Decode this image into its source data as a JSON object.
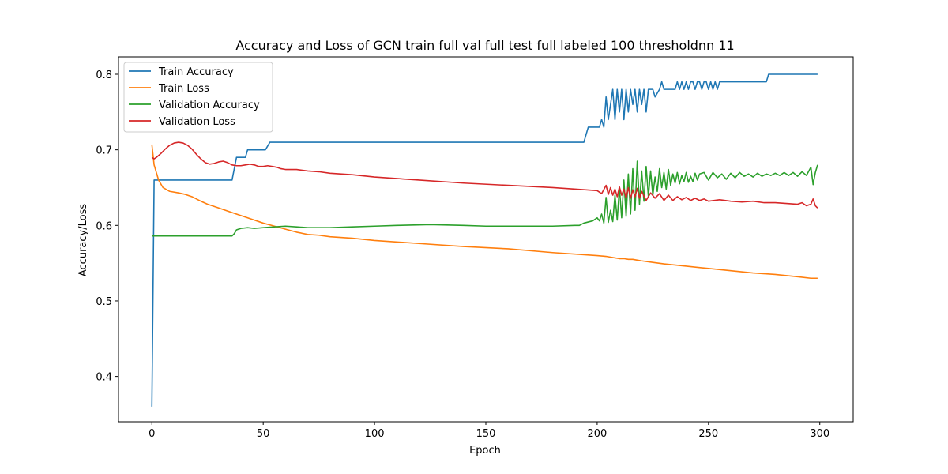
{
  "chart_data": {
    "type": "line",
    "title": "Accuracy and Loss of GCN train full val full test full labeled 100 thresholdnn 11",
    "xlabel": "Epoch",
    "ylabel": "Accuracy/Loss",
    "xlim": [
      -15,
      315
    ],
    "ylim": [
      0.34,
      0.823
    ],
    "xticks": [
      0,
      50,
      100,
      150,
      200,
      250,
      300
    ],
    "yticks": [
      0.4,
      0.5,
      0.6,
      0.7,
      0.8
    ],
    "legend_position": "upper-left",
    "grid": false,
    "series": [
      {
        "name": "Train Accuracy",
        "color": "#1f77b4",
        "points": [
          [
            0,
            0.36
          ],
          [
            1,
            0.66
          ],
          [
            36,
            0.66
          ],
          [
            38,
            0.69
          ],
          [
            42,
            0.69
          ],
          [
            43,
            0.7
          ],
          [
            51,
            0.7
          ],
          [
            53,
            0.71
          ],
          [
            194,
            0.71
          ],
          [
            196,
            0.73
          ],
          [
            201,
            0.73
          ],
          [
            202,
            0.74
          ],
          [
            203,
            0.73
          ],
          [
            204,
            0.77
          ],
          [
            205,
            0.74
          ],
          [
            206,
            0.76
          ],
          [
            207,
            0.78
          ],
          [
            208,
            0.74
          ],
          [
            209,
            0.78
          ],
          [
            210,
            0.75
          ],
          [
            211,
            0.78
          ],
          [
            212,
            0.74
          ],
          [
            213,
            0.78
          ],
          [
            214,
            0.75
          ],
          [
            215,
            0.78
          ],
          [
            216,
            0.76
          ],
          [
            217,
            0.78
          ],
          [
            218,
            0.75
          ],
          [
            219,
            0.78
          ],
          [
            220,
            0.76
          ],
          [
            221,
            0.78
          ],
          [
            222,
            0.75
          ],
          [
            223,
            0.78
          ],
          [
            225,
            0.78
          ],
          [
            226,
            0.77
          ],
          [
            228,
            0.78
          ],
          [
            229,
            0.79
          ],
          [
            230,
            0.78
          ],
          [
            235,
            0.78
          ],
          [
            236,
            0.79
          ],
          [
            237,
            0.78
          ],
          [
            238,
            0.79
          ],
          [
            239,
            0.78
          ],
          [
            240,
            0.79
          ],
          [
            241,
            0.78
          ],
          [
            242,
            0.79
          ],
          [
            243,
            0.79
          ],
          [
            244,
            0.78
          ],
          [
            245,
            0.79
          ],
          [
            246,
            0.79
          ],
          [
            247,
            0.78
          ],
          [
            248,
            0.79
          ],
          [
            249,
            0.79
          ],
          [
            250,
            0.78
          ],
          [
            251,
            0.79
          ],
          [
            252,
            0.78
          ],
          [
            253,
            0.79
          ],
          [
            254,
            0.78
          ],
          [
            255,
            0.79
          ],
          [
            276,
            0.79
          ],
          [
            277,
            0.8
          ],
          [
            299,
            0.8
          ]
        ]
      },
      {
        "name": "Train Loss",
        "color": "#ff7f0e",
        "points": [
          [
            0,
            0.707
          ],
          [
            1,
            0.68
          ],
          [
            3,
            0.66
          ],
          [
            5,
            0.65
          ],
          [
            8,
            0.645
          ],
          [
            12,
            0.643
          ],
          [
            15,
            0.641
          ],
          [
            18,
            0.638
          ],
          [
            22,
            0.632
          ],
          [
            25,
            0.628
          ],
          [
            30,
            0.623
          ],
          [
            35,
            0.618
          ],
          [
            40,
            0.613
          ],
          [
            45,
            0.608
          ],
          [
            50,
            0.603
          ],
          [
            55,
            0.599
          ],
          [
            60,
            0.595
          ],
          [
            65,
            0.591
          ],
          [
            70,
            0.588
          ],
          [
            75,
            0.587
          ],
          [
            80,
            0.585
          ],
          [
            90,
            0.583
          ],
          [
            100,
            0.58
          ],
          [
            120,
            0.576
          ],
          [
            140,
            0.572
          ],
          [
            160,
            0.569
          ],
          [
            180,
            0.564
          ],
          [
            200,
            0.56
          ],
          [
            204,
            0.559
          ],
          [
            206,
            0.558
          ],
          [
            208,
            0.557
          ],
          [
            210,
            0.556
          ],
          [
            212,
            0.556
          ],
          [
            214,
            0.555
          ],
          [
            216,
            0.555
          ],
          [
            218,
            0.554
          ],
          [
            220,
            0.553
          ],
          [
            225,
            0.551
          ],
          [
            230,
            0.549
          ],
          [
            240,
            0.546
          ],
          [
            250,
            0.543
          ],
          [
            260,
            0.54
          ],
          [
            270,
            0.537
          ],
          [
            280,
            0.535
          ],
          [
            290,
            0.532
          ],
          [
            296,
            0.53
          ],
          [
            299,
            0.53
          ]
        ]
      },
      {
        "name": "Validation Accuracy",
        "color": "#2ca02c",
        "points": [
          [
            0,
            0.586
          ],
          [
            36,
            0.586
          ],
          [
            37,
            0.589
          ],
          [
            38,
            0.594
          ],
          [
            40,
            0.596
          ],
          [
            43,
            0.597
          ],
          [
            46,
            0.596
          ],
          [
            50,
            0.597
          ],
          [
            55,
            0.598
          ],
          [
            60,
            0.599
          ],
          [
            65,
            0.598
          ],
          [
            70,
            0.597
          ],
          [
            80,
            0.597
          ],
          [
            90,
            0.598
          ],
          [
            100,
            0.599
          ],
          [
            110,
            0.6
          ],
          [
            125,
            0.601
          ],
          [
            140,
            0.6
          ],
          [
            150,
            0.599
          ],
          [
            160,
            0.599
          ],
          [
            170,
            0.599
          ],
          [
            180,
            0.599
          ],
          [
            190,
            0.6
          ],
          [
            192,
            0.6
          ],
          [
            194,
            0.603
          ],
          [
            198,
            0.606
          ],
          [
            200,
            0.61
          ],
          [
            201,
            0.606
          ],
          [
            202,
            0.615
          ],
          [
            203,
            0.603
          ],
          [
            204,
            0.637
          ],
          [
            205,
            0.604
          ],
          [
            206,
            0.62
          ],
          [
            207,
            0.605
          ],
          [
            208,
            0.64
          ],
          [
            209,
            0.607
          ],
          [
            210,
            0.65
          ],
          [
            211,
            0.61
          ],
          [
            212,
            0.66
          ],
          [
            213,
            0.612
          ],
          [
            214,
            0.668
          ],
          [
            215,
            0.615
          ],
          [
            216,
            0.675
          ],
          [
            217,
            0.62
          ],
          [
            218,
            0.685
          ],
          [
            219,
            0.628
          ],
          [
            220,
            0.672
          ],
          [
            221,
            0.632
          ],
          [
            222,
            0.678
          ],
          [
            223,
            0.638
          ],
          [
            224,
            0.672
          ],
          [
            225,
            0.64
          ],
          [
            226,
            0.664
          ],
          [
            227,
            0.645
          ],
          [
            228,
            0.675
          ],
          [
            229,
            0.65
          ],
          [
            230,
            0.67
          ],
          [
            231,
            0.648
          ],
          [
            232,
            0.674
          ],
          [
            233,
            0.653
          ],
          [
            234,
            0.668
          ],
          [
            235,
            0.656
          ],
          [
            236,
            0.67
          ],
          [
            237,
            0.655
          ],
          [
            238,
            0.666
          ],
          [
            239,
            0.658
          ],
          [
            240,
            0.67
          ],
          [
            241,
            0.657
          ],
          [
            242,
            0.665
          ],
          [
            243,
            0.658
          ],
          [
            244,
            0.669
          ],
          [
            245,
            0.66
          ],
          [
            246,
            0.668
          ],
          [
            248,
            0.67
          ],
          [
            250,
            0.66
          ],
          [
            252,
            0.67
          ],
          [
            254,
            0.663
          ],
          [
            256,
            0.668
          ],
          [
            258,
            0.661
          ],
          [
            260,
            0.669
          ],
          [
            262,
            0.663
          ],
          [
            264,
            0.67
          ],
          [
            266,
            0.665
          ],
          [
            268,
            0.668
          ],
          [
            270,
            0.664
          ],
          [
            272,
            0.669
          ],
          [
            274,
            0.665
          ],
          [
            276,
            0.668
          ],
          [
            278,
            0.666
          ],
          [
            280,
            0.669
          ],
          [
            282,
            0.666
          ],
          [
            284,
            0.67
          ],
          [
            286,
            0.666
          ],
          [
            288,
            0.67
          ],
          [
            290,
            0.665
          ],
          [
            292,
            0.671
          ],
          [
            294,
            0.666
          ],
          [
            296,
            0.677
          ],
          [
            297,
            0.654
          ],
          [
            298,
            0.67
          ],
          [
            299,
            0.68
          ]
        ]
      },
      {
        "name": "Validation Loss",
        "color": "#d62728",
        "points": [
          [
            0,
            0.69
          ],
          [
            1,
            0.688
          ],
          [
            2,
            0.69
          ],
          [
            4,
            0.695
          ],
          [
            6,
            0.701
          ],
          [
            8,
            0.706
          ],
          [
            10,
            0.709
          ],
          [
            12,
            0.71
          ],
          [
            14,
            0.709
          ],
          [
            16,
            0.706
          ],
          [
            18,
            0.701
          ],
          [
            20,
            0.694
          ],
          [
            22,
            0.688
          ],
          [
            24,
            0.683
          ],
          [
            26,
            0.681
          ],
          [
            28,
            0.682
          ],
          [
            30,
            0.684
          ],
          [
            32,
            0.685
          ],
          [
            34,
            0.683
          ],
          [
            36,
            0.68
          ],
          [
            38,
            0.679
          ],
          [
            40,
            0.679
          ],
          [
            42,
            0.68
          ],
          [
            44,
            0.681
          ],
          [
            46,
            0.68
          ],
          [
            48,
            0.678
          ],
          [
            50,
            0.678
          ],
          [
            52,
            0.679
          ],
          [
            54,
            0.678
          ],
          [
            56,
            0.677
          ],
          [
            58,
            0.675
          ],
          [
            60,
            0.674
          ],
          [
            65,
            0.674
          ],
          [
            70,
            0.672
          ],
          [
            75,
            0.671
          ],
          [
            80,
            0.669
          ],
          [
            90,
            0.667
          ],
          [
            100,
            0.664
          ],
          [
            120,
            0.66
          ],
          [
            140,
            0.656
          ],
          [
            160,
            0.653
          ],
          [
            180,
            0.65
          ],
          [
            195,
            0.647
          ],
          [
            200,
            0.646
          ],
          [
            202,
            0.642
          ],
          [
            204,
            0.653
          ],
          [
            205,
            0.641
          ],
          [
            206,
            0.65
          ],
          [
            207,
            0.64
          ],
          [
            208,
            0.648
          ],
          [
            209,
            0.638
          ],
          [
            210,
            0.651
          ],
          [
            211,
            0.64
          ],
          [
            212,
            0.648
          ],
          [
            213,
            0.636
          ],
          [
            214,
            0.65
          ],
          [
            215,
            0.636
          ],
          [
            216,
            0.647
          ],
          [
            217,
            0.638
          ],
          [
            218,
            0.649
          ],
          [
            219,
            0.636
          ],
          [
            220,
            0.645
          ],
          [
            222,
            0.633
          ],
          [
            224,
            0.643
          ],
          [
            226,
            0.636
          ],
          [
            228,
            0.642
          ],
          [
            230,
            0.633
          ],
          [
            232,
            0.64
          ],
          [
            234,
            0.633
          ],
          [
            236,
            0.638
          ],
          [
            238,
            0.634
          ],
          [
            240,
            0.637
          ],
          [
            242,
            0.633
          ],
          [
            244,
            0.636
          ],
          [
            246,
            0.633
          ],
          [
            248,
            0.635
          ],
          [
            250,
            0.632
          ],
          [
            255,
            0.634
          ],
          [
            260,
            0.632
          ],
          [
            265,
            0.631
          ],
          [
            270,
            0.632
          ],
          [
            275,
            0.63
          ],
          [
            280,
            0.63
          ],
          [
            285,
            0.629
          ],
          [
            290,
            0.628
          ],
          [
            292,
            0.63
          ],
          [
            294,
            0.626
          ],
          [
            296,
            0.628
          ],
          [
            297,
            0.635
          ],
          [
            298,
            0.626
          ],
          [
            299,
            0.623
          ]
        ]
      }
    ]
  }
}
